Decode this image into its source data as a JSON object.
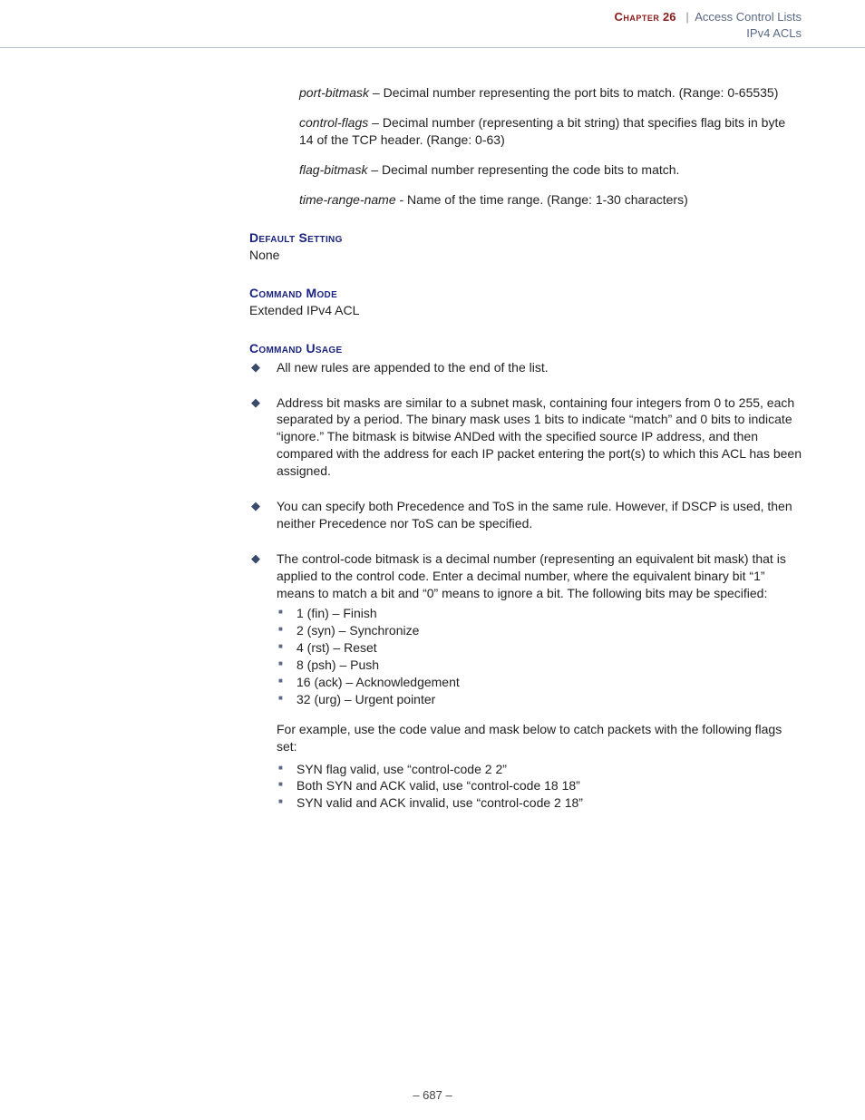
{
  "header": {
    "chapter_label": "Chapter",
    "chapter_number": "26",
    "separator": "|",
    "title": "Access Control Lists",
    "subtitle": "IPv4 ACLs"
  },
  "params": [
    {
      "term": "port-bitmask",
      "desc": " – Decimal number representing the port bits to match. (Range: 0-65535)"
    },
    {
      "term": "control-flags",
      "desc": " – Decimal number (representing a bit string) that specifies flag bits in byte 14 of the TCP header. (Range: 0-63)"
    },
    {
      "term": "flag-bitmask",
      "desc": " – Decimal number representing the code bits to match."
    },
    {
      "term": "time-range-name",
      "desc": " - Name of the time range. (Range: 1-30 characters)"
    }
  ],
  "sections": {
    "default_setting": {
      "heading": "Default Setting",
      "body": "None"
    },
    "command_mode": {
      "heading": "Command Mode",
      "body": "Extended IPv4 ACL"
    },
    "command_usage": {
      "heading": "Command Usage",
      "bullets": [
        "All new rules are appended to the end of the list.",
        "Address bit masks are similar to a subnet mask, containing four integers from 0 to 255, each separated by a period. The binary mask uses 1 bits to indicate “match” and 0 bits to indicate “ignore.” The bitmask is bitwise ANDed with the specified source IP address, and then compared with the address for each IP packet entering the port(s) to which this ACL has been assigned.",
        "You can specify both Precedence and ToS in the same rule. However, if DSCP is used, then neither Precedence nor ToS can be specified."
      ],
      "bullet4_intro": "The control-code bitmask is a decimal number (representing an equivalent bit mask) that is applied to the control code. Enter a decimal number, where the equivalent binary bit “1” means to match a bit and “0” means to ignore a bit. The following bits may be specified:",
      "bit_list": [
        "1 (fin) – Finish",
        "2 (syn) – Synchronize",
        "4 (rst) – Reset",
        "8 (psh) – Push",
        "16 (ack) – Acknowledgement",
        "32 (urg) – Urgent pointer"
      ],
      "example_intro": "For example, use the code value and mask below to catch packets with the following flags set:",
      "example_list": [
        "SYN flag valid, use “control-code 2 2”",
        "Both SYN and ACK valid, use “control-code 18 18”",
        "SYN valid and ACK invalid, use “control-code 2 18”"
      ]
    }
  },
  "page_number": "–  687  –"
}
